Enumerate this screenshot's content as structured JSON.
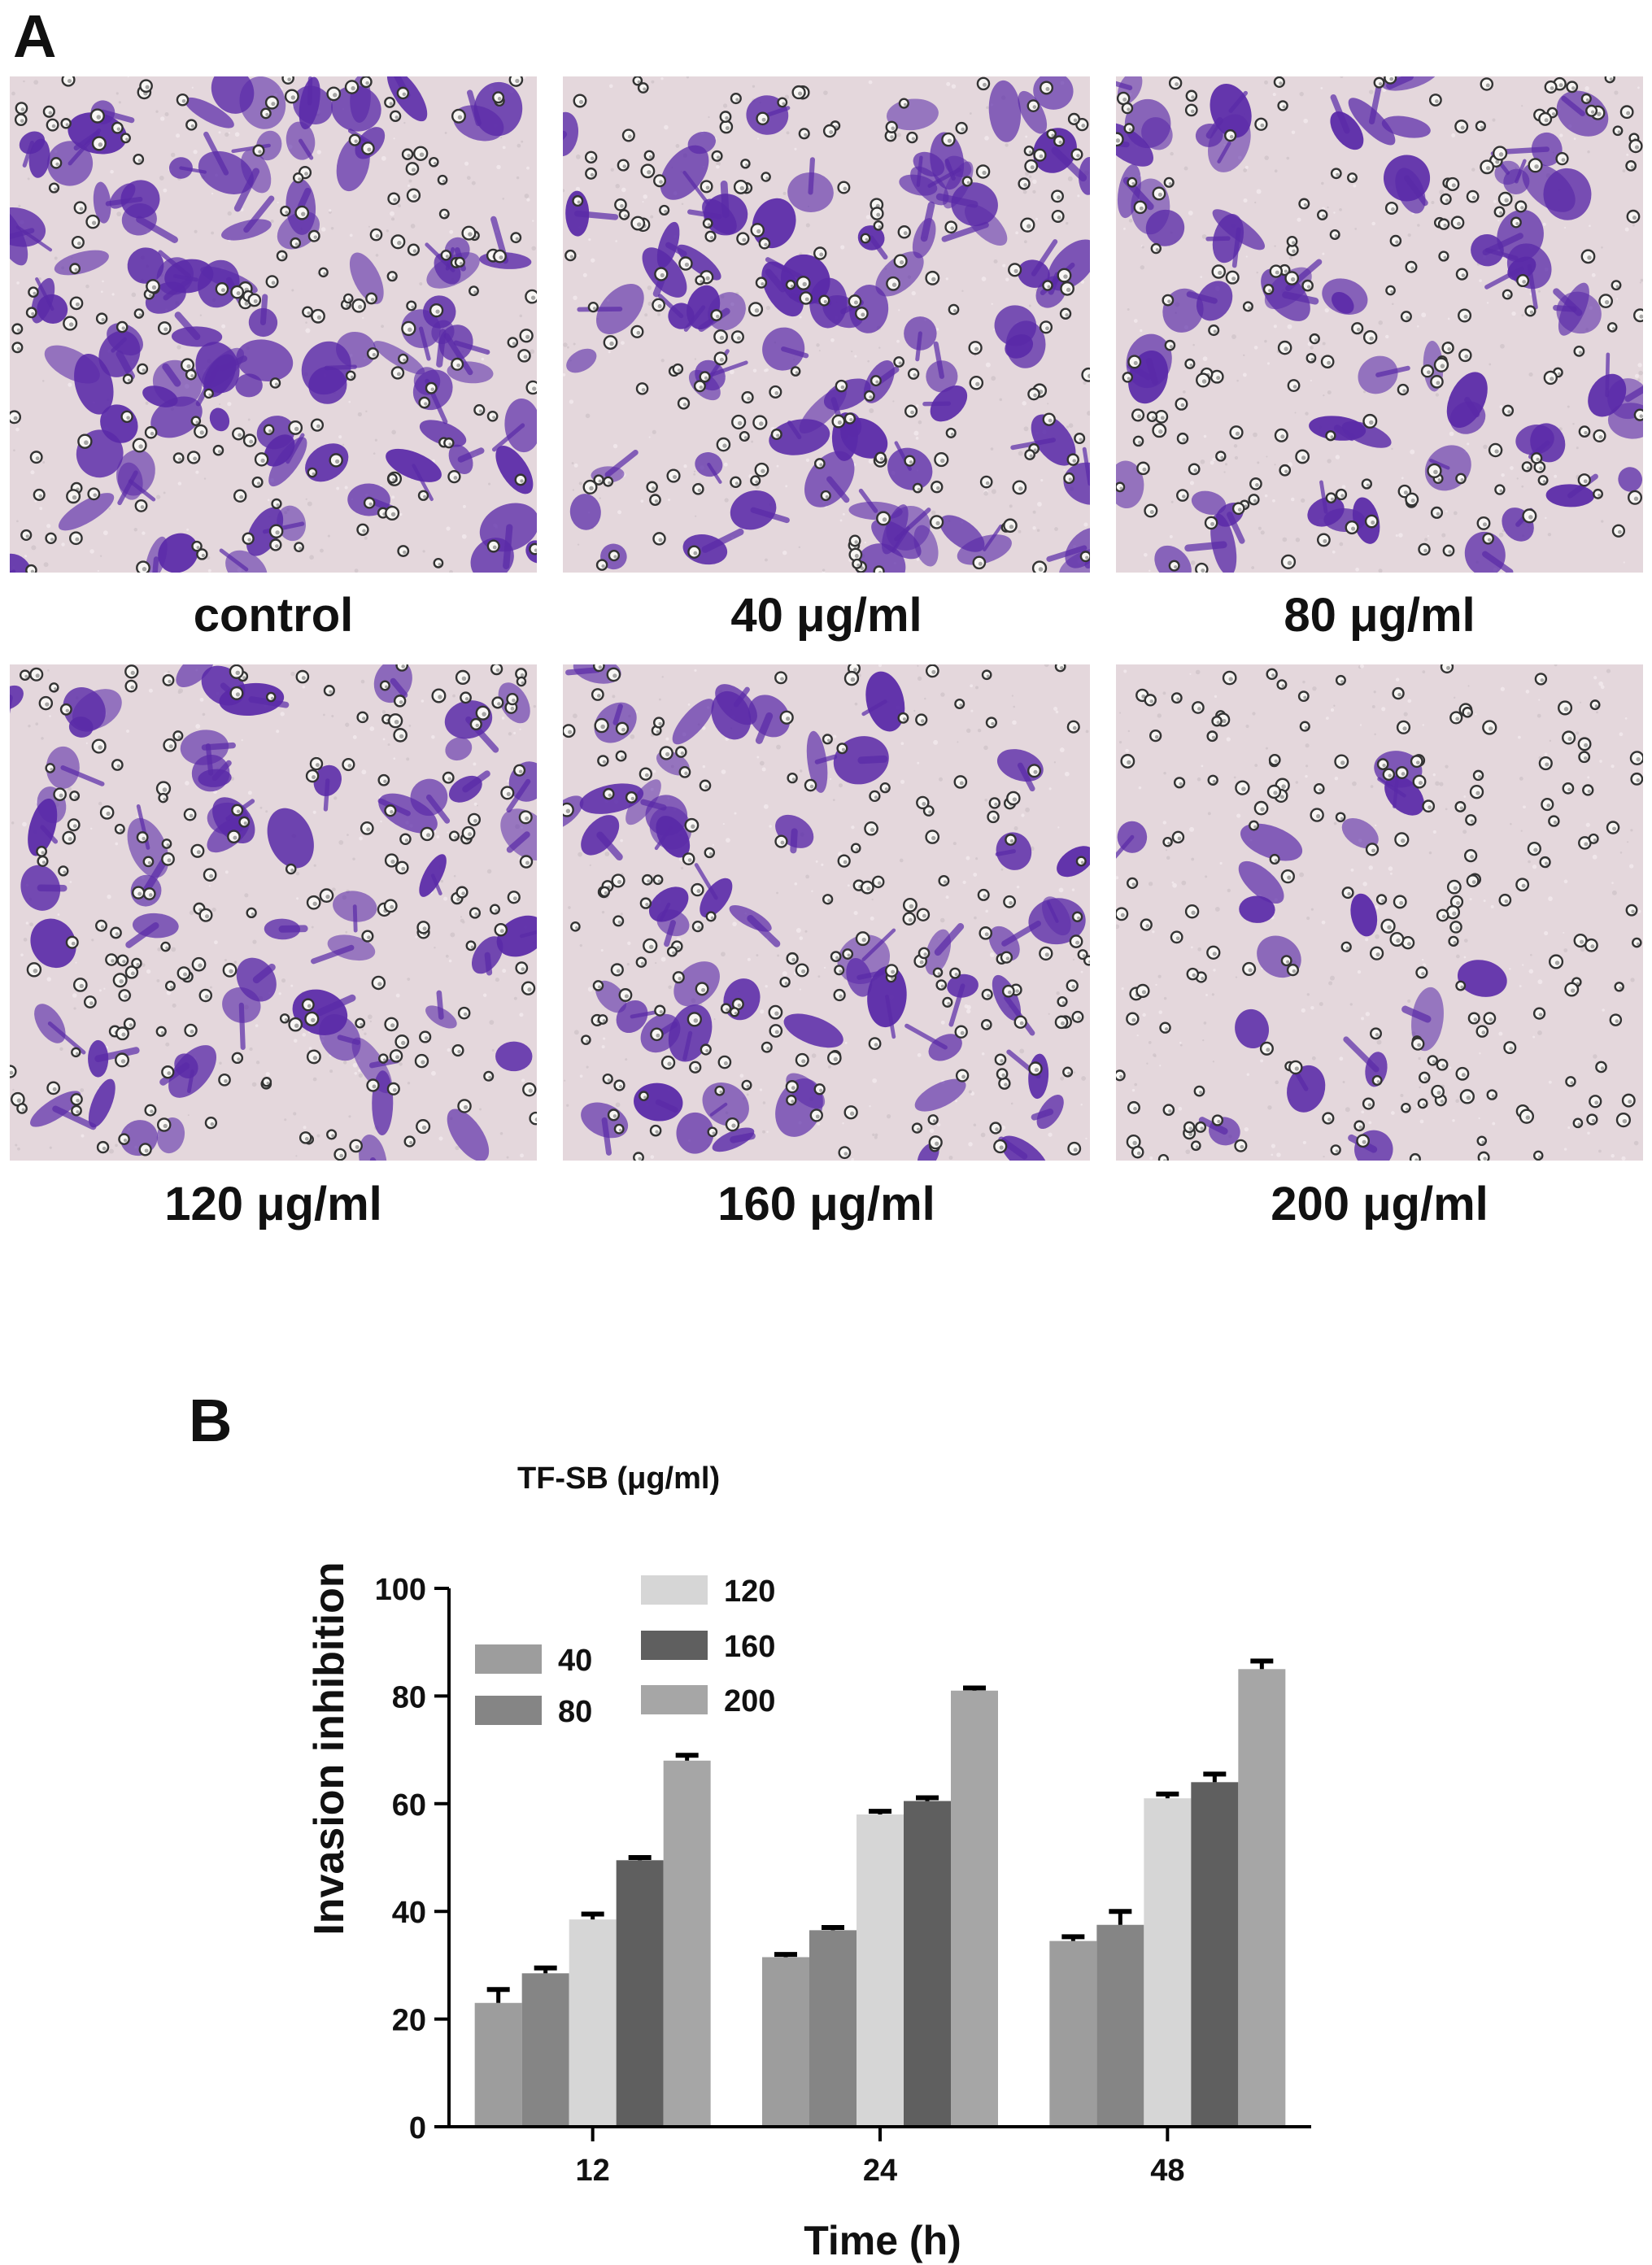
{
  "panels": {
    "a": {
      "letter": "A",
      "images": [
        {
          "caption": "control",
          "stain": "#5a2aa8"
        },
        {
          "caption": "40 μg/ml",
          "stain": "#5a2aa8"
        },
        {
          "caption": "80 μg/ml",
          "stain": "#5a2aa8"
        },
        {
          "caption": "120 μg/ml",
          "stain": "#5a2aa8"
        },
        {
          "caption": "160 μg/ml",
          "stain": "#5a2aa8"
        },
        {
          "caption": "200 μg/ml",
          "stain": "#5a2aa8"
        }
      ]
    },
    "b": {
      "letter": "B"
    }
  },
  "chart_data": {
    "type": "bar",
    "xlabel": "Time (h)",
    "ylabel": "Invasion inhibition",
    "ylim": [
      0,
      100
    ],
    "yticks": [
      0,
      20,
      40,
      60,
      80,
      100
    ],
    "categories": [
      "12",
      "24",
      "48"
    ],
    "legend_title": "TF-SB (μg/ml)",
    "legend_position": "top-left",
    "grid": false,
    "series": [
      {
        "name": "40",
        "color": "#9d9d9d",
        "values": [
          23,
          31.5,
          34.5
        ],
        "errors": [
          2.5,
          0.5,
          0.8
        ]
      },
      {
        "name": "80",
        "color": "#858585",
        "values": [
          28.5,
          36.5,
          37.5
        ],
        "errors": [
          1.0,
          0.5,
          2.5
        ]
      },
      {
        "name": "120",
        "color": "#d6d6d6",
        "values": [
          38.5,
          58,
          61
        ],
        "errors": [
          1.0,
          0.6,
          0.8
        ]
      },
      {
        "name": "160",
        "color": "#5f5f5f",
        "values": [
          49.5,
          60.5,
          64
        ],
        "errors": [
          0.5,
          0.6,
          1.5
        ]
      },
      {
        "name": "200",
        "color": "#a6a6a6",
        "values": [
          68,
          81,
          85
        ],
        "errors": [
          1.0,
          0.5,
          1.5
        ]
      }
    ]
  }
}
